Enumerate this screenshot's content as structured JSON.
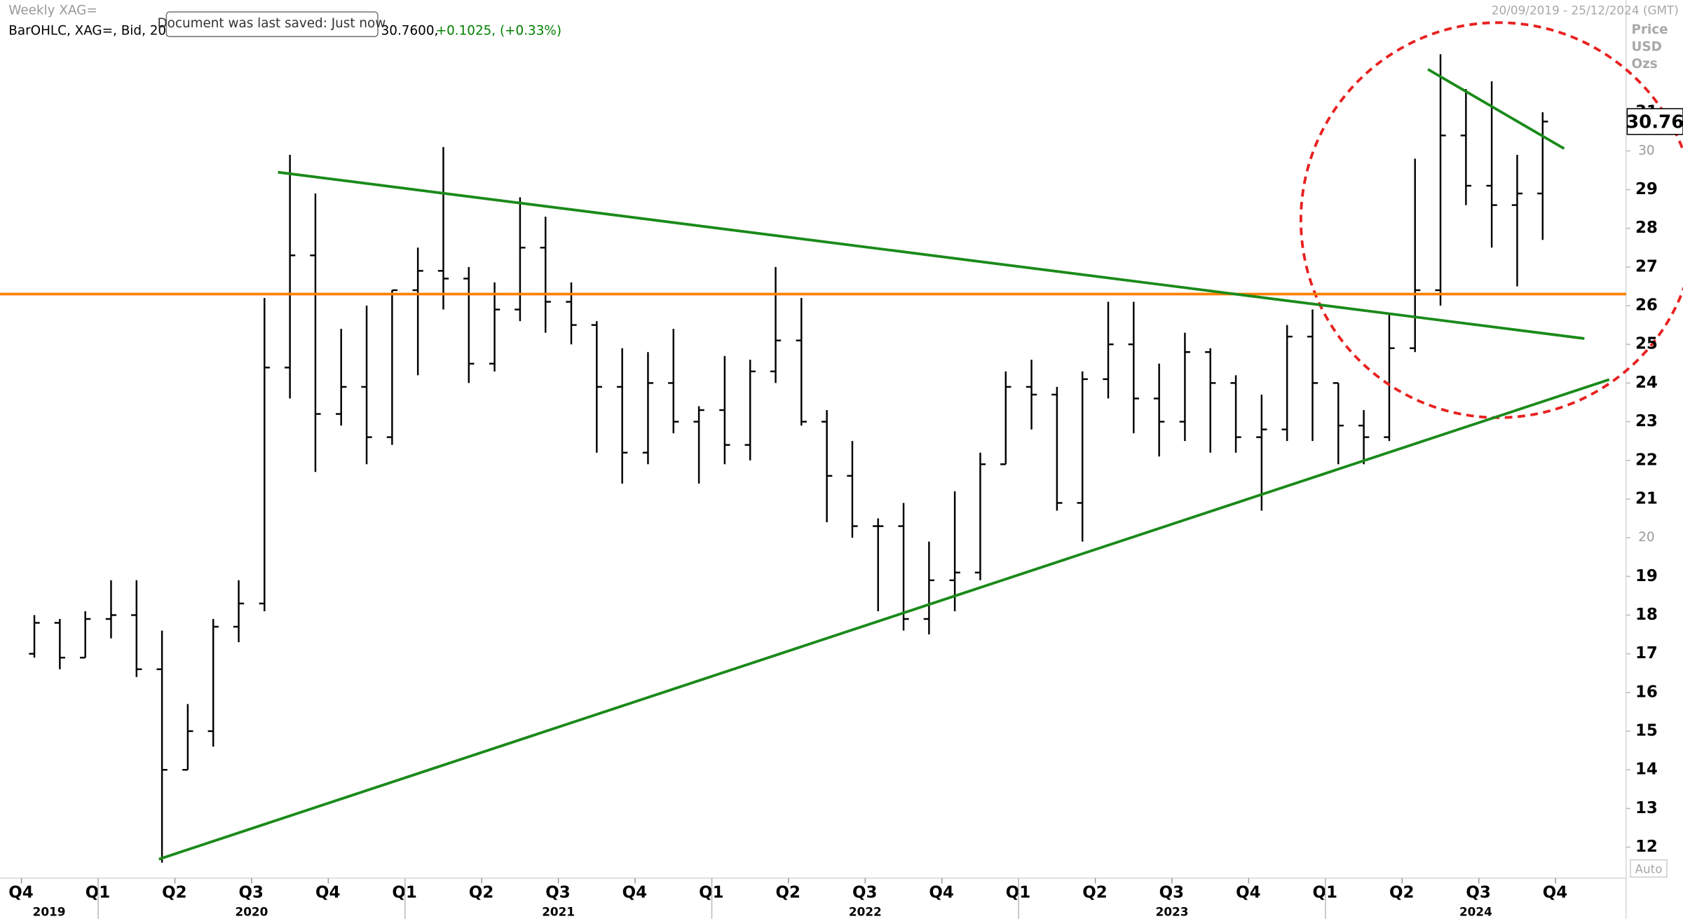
{
  "chart_data": {
    "type": "ohlc",
    "title": "Weekly XAG=",
    "subtitle": "BarOHLC, XAG=, Bid, 20/",
    "tooltip": "Document was last saved: Just now",
    "last_value_text": "30.7600,",
    "change_text": "+0.1025, (+0.33%)",
    "change_color": "#008000",
    "date_range": "20/09/2019 - 25/12/2024 (GMT)",
    "axis_units": [
      "Price",
      "USD",
      "Ozs"
    ],
    "scale_mode": "Auto",
    "last_price": 30.76,
    "color": "#000000",
    "x": [
      2019.792,
      2019.875,
      2019.958,
      2020.042,
      2020.125,
      2020.208,
      2020.292,
      2020.375,
      2020.458,
      2020.542,
      2020.625,
      2020.708,
      2020.792,
      2020.875,
      2020.958,
      2021.042,
      2021.125,
      2021.208,
      2021.292,
      2021.375,
      2021.458,
      2021.542,
      2021.625,
      2021.708,
      2021.792,
      2021.875,
      2021.958,
      2022.042,
      2022.125,
      2022.208,
      2022.292,
      2022.375,
      2022.458,
      2022.542,
      2022.625,
      2022.708,
      2022.792,
      2022.875,
      2022.958,
      2023.042,
      2023.125,
      2023.208,
      2023.292,
      2023.375,
      2023.458,
      2023.542,
      2023.625,
      2023.708,
      2023.792,
      2023.875,
      2023.958,
      2024.042,
      2024.125,
      2024.208,
      2024.292,
      2024.375,
      2024.458,
      2024.542,
      2024.625,
      2024.708
    ],
    "open": [
      17.0,
      17.8,
      16.9,
      17.9,
      18.0,
      16.6,
      14.0,
      15.0,
      17.7,
      18.3,
      24.4,
      27.3,
      23.2,
      23.9,
      22.6,
      26.4,
      26.9,
      26.7,
      24.5,
      25.9,
      27.5,
      26.1,
      25.5,
      23.9,
      22.2,
      24.0,
      23.0,
      23.3,
      22.4,
      24.3,
      25.1,
      23.0,
      21.6,
      20.3,
      20.3,
      17.9,
      18.9,
      19.1,
      21.9,
      23.9,
      23.7,
      20.9,
      24.1,
      25.0,
      23.6,
      23.0,
      24.8,
      24.0,
      22.6,
      22.8,
      25.2,
      24.0,
      22.9,
      22.6,
      24.9,
      26.4,
      30.4,
      29.1,
      28.6,
      28.9
    ],
    "high": [
      18.0,
      17.9,
      18.1,
      18.9,
      18.9,
      17.6,
      15.7,
      17.9,
      18.9,
      26.2,
      29.9,
      28.9,
      25.4,
      26.0,
      26.4,
      27.5,
      30.1,
      27.0,
      26.6,
      28.8,
      28.3,
      26.6,
      25.6,
      24.9,
      24.8,
      25.4,
      23.4,
      24.7,
      24.6,
      27.0,
      26.2,
      23.3,
      22.5,
      20.5,
      20.9,
      19.9,
      21.2,
      22.2,
      24.3,
      24.6,
      23.9,
      24.3,
      26.1,
      26.1,
      24.5,
      25.3,
      24.9,
      24.2,
      23.7,
      25.5,
      25.9,
      24.0,
      23.3,
      25.8,
      29.8,
      32.5,
      31.6,
      31.8,
      29.9,
      31.0
    ],
    "low": [
      16.9,
      16.6,
      16.9,
      17.4,
      16.4,
      11.6,
      14.0,
      14.6,
      17.3,
      18.1,
      23.6,
      21.7,
      22.9,
      21.9,
      22.4,
      24.2,
      25.9,
      24.0,
      24.3,
      25.6,
      25.3,
      25.0,
      22.2,
      21.4,
      21.9,
      22.7,
      21.4,
      21.9,
      22.0,
      24.0,
      22.9,
      20.4,
      20.0,
      18.1,
      17.6,
      17.5,
      18.1,
      18.9,
      21.9,
      22.8,
      20.7,
      19.9,
      23.6,
      22.7,
      22.1,
      22.5,
      22.2,
      22.2,
      20.7,
      22.5,
      22.5,
      21.9,
      21.9,
      22.5,
      24.8,
      26.0,
      28.6,
      27.5,
      26.5,
      27.7
    ],
    "close": [
      17.8,
      16.9,
      17.9,
      18.0,
      16.6,
      14.0,
      15.0,
      17.7,
      18.3,
      24.4,
      27.3,
      23.2,
      23.9,
      22.6,
      26.4,
      26.9,
      26.7,
      24.5,
      25.9,
      27.5,
      26.1,
      25.5,
      23.9,
      22.2,
      24.0,
      23.0,
      23.3,
      22.4,
      24.3,
      25.1,
      23.0,
      21.6,
      20.3,
      20.3,
      17.9,
      18.9,
      19.1,
      21.9,
      23.9,
      23.7,
      20.9,
      24.1,
      25.0,
      23.6,
      23.0,
      24.8,
      24.0,
      22.6,
      22.8,
      25.2,
      24.0,
      22.9,
      22.6,
      24.9,
      26.4,
      30.4,
      29.1,
      28.6,
      28.9,
      30.76
    ],
    "xlim": [
      2019.68,
      2024.98
    ],
    "ylim": [
      11.2,
      33.9
    ],
    "yticks": [
      12,
      13,
      14,
      15,
      16,
      17,
      18,
      19,
      20,
      21,
      22,
      23,
      24,
      25,
      26,
      27,
      28,
      29,
      30,
      31
    ],
    "xticks": [
      {
        "value": 2019.75,
        "label": "Q4"
      },
      {
        "value": 2020,
        "label": "Q1"
      },
      {
        "value": 2020.25,
        "label": "Q2"
      },
      {
        "value": 2020.5,
        "label": "Q3"
      },
      {
        "value": 2020.75,
        "label": "Q4"
      },
      {
        "value": 2021,
        "label": "Q1"
      },
      {
        "value": 2021.25,
        "label": "Q2"
      },
      {
        "value": 2021.5,
        "label": "Q3"
      },
      {
        "value": 2021.75,
        "label": "Q4"
      },
      {
        "value": 2022,
        "label": "Q1"
      },
      {
        "value": 2022.25,
        "label": "Q2"
      },
      {
        "value": 2022.5,
        "label": "Q3"
      },
      {
        "value": 2022.75,
        "label": "Q4"
      },
      {
        "value": 2023,
        "label": "Q1"
      },
      {
        "value": 2023.25,
        "label": "Q2"
      },
      {
        "value": 2023.5,
        "label": "Q3"
      },
      {
        "value": 2023.75,
        "label": "Q4"
      },
      {
        "value": 2024,
        "label": "Q1"
      },
      {
        "value": 2024.25,
        "label": "Q2"
      },
      {
        "value": 2024.5,
        "label": "Q3"
      },
      {
        "value": 2024.75,
        "label": "Q4"
      }
    ],
    "years": [
      2019,
      2020,
      2021,
      2022,
      2023,
      2024
    ],
    "hlines": [
      {
        "value": 26.3,
        "color": "#ff8000"
      }
    ],
    "trendlines": [
      {
        "color": "#1a8a1a",
        "points": [
          [
            2020.586,
            29.45
          ],
          [
            2024.844,
            25.15
          ]
        ]
      },
      {
        "color": "#1a8a1a",
        "points": [
          [
            2020.198,
            11.69
          ],
          [
            2024.925,
            24.09
          ]
        ]
      },
      {
        "color": "#1a8a1a",
        "points": [
          [
            2024.334,
            32.11
          ],
          [
            2024.778,
            30.06
          ]
        ]
      }
    ]
  }
}
